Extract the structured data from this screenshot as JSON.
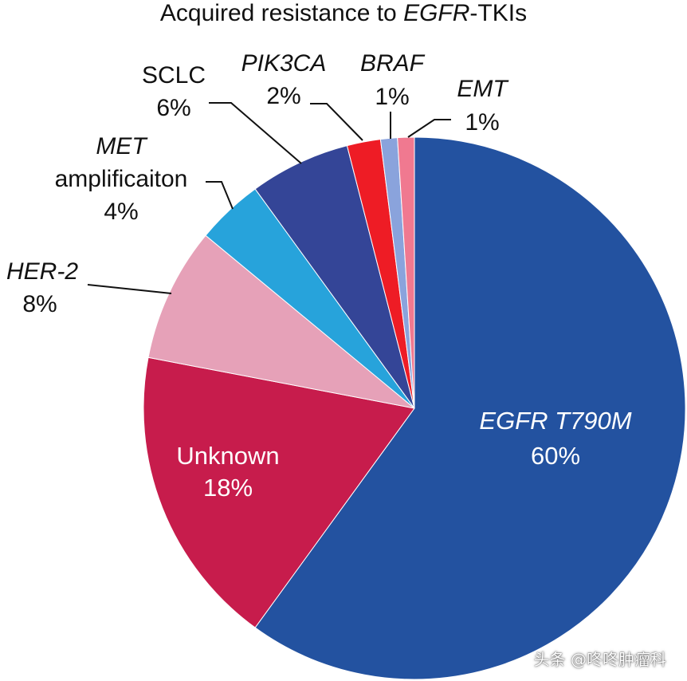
{
  "chart_data": {
    "type": "pie",
    "title_parts": [
      {
        "text": "Acquired resistance to ",
        "italic": false
      },
      {
        "text": "EGFR",
        "italic": true
      },
      {
        "text": "-TKIs",
        "italic": false
      }
    ],
    "slices": [
      {
        "label": "EGFR T790M",
        "value": 60,
        "value_text": "60%",
        "color": "#2352a0",
        "italic": true
      },
      {
        "label": "Unknown",
        "value": 18,
        "value_text": "18%",
        "color": "#c71c4c",
        "italic": false
      },
      {
        "label": "HER-2",
        "value": 8,
        "value_text": "8%",
        "color": "#e6a1b8",
        "italic": true
      },
      {
        "label_lines": [
          "MET",
          "amplificaiton"
        ],
        "value": 4,
        "value_text": "4%",
        "color": "#27a3db",
        "italic": true
      },
      {
        "label": "SCLC",
        "value": 6,
        "value_text": "6%",
        "color": "#344597",
        "italic": false
      },
      {
        "label": "PIK3CA",
        "value": 2,
        "value_text": "2%",
        "color": "#ee1c25",
        "italic": true
      },
      {
        "label": "BRAF",
        "value": 1,
        "value_text": "1%",
        "color": "#8aa3dc",
        "italic": true
      },
      {
        "label": "EMT",
        "value": 1,
        "value_text": "1%",
        "color": "#f07990",
        "italic": true
      }
    ]
  },
  "watermark": "头条 @咚咚肿瘤科"
}
